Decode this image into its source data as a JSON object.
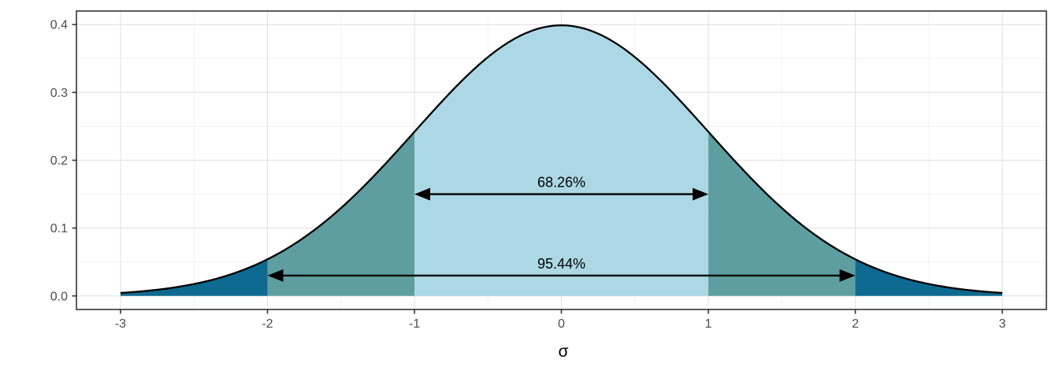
{
  "chart_data": {
    "type": "area",
    "title": "",
    "xlabel": "σ",
    "ylabel": "",
    "distribution": "standard normal pdf: y = exp(-x^2/2) / sqrt(2*pi)",
    "peak_value": 0.3989,
    "x_range": [
      -3,
      3
    ],
    "xlim": [
      -3.3,
      3.3
    ],
    "ylim": [
      -0.02,
      0.42
    ],
    "grid": true,
    "legend": "none",
    "x_ticks": [
      {
        "value": -3,
        "label": "-3"
      },
      {
        "value": -2,
        "label": "-2"
      },
      {
        "value": -1,
        "label": "-1"
      },
      {
        "value": 0,
        "label": "0"
      },
      {
        "value": 1,
        "label": "1"
      },
      {
        "value": 2,
        "label": "2"
      },
      {
        "value": 3,
        "label": "3"
      }
    ],
    "y_ticks": [
      {
        "value": 0.0,
        "label": "0.0"
      },
      {
        "value": 0.1,
        "label": "0.1"
      },
      {
        "value": 0.2,
        "label": "0.2"
      },
      {
        "value": 0.3,
        "label": "0.3"
      },
      {
        "value": 0.4,
        "label": "0.4"
      }
    ],
    "x_minor_ticks": [
      -2.5,
      -1.5,
      -0.5,
      0.5,
      1.5,
      2.5
    ],
    "y_minor_ticks": [
      0.05,
      0.15,
      0.25,
      0.35
    ],
    "regions": [
      {
        "name": "tail-left",
        "from": -3,
        "to": -2,
        "color": "#0E6A90"
      },
      {
        "name": "band-left",
        "from": -2,
        "to": -1,
        "color": "#5F9EA0"
      },
      {
        "name": "center",
        "from": -1,
        "to": 1,
        "color": "#ACD8E5"
      },
      {
        "name": "band-right",
        "from": 1,
        "to": 2,
        "color": "#5F9EA0"
      },
      {
        "name": "tail-right",
        "from": 2,
        "to": 3,
        "color": "#0E6A90"
      }
    ],
    "annotations": [
      {
        "label": "68.26%",
        "from": -1,
        "to": 1,
        "y": 0.15
      },
      {
        "label": "95.44%",
        "from": -2,
        "to": 2,
        "y": 0.03
      }
    ],
    "colors": {
      "curve_stroke": "#000000",
      "region_inner": "#ACD8E5",
      "region_mid": "#5F9EA0",
      "region_tail": "#0E6A90",
      "grid_major": "#E5E5E5",
      "grid_minor": "#F1F1F1",
      "panel_border": "#333333",
      "tick_mark": "#333333",
      "tick_label": "#4D4D4D",
      "axis_title": "#000000",
      "annotation_text": "#000000",
      "background": "#FFFFFF"
    }
  }
}
